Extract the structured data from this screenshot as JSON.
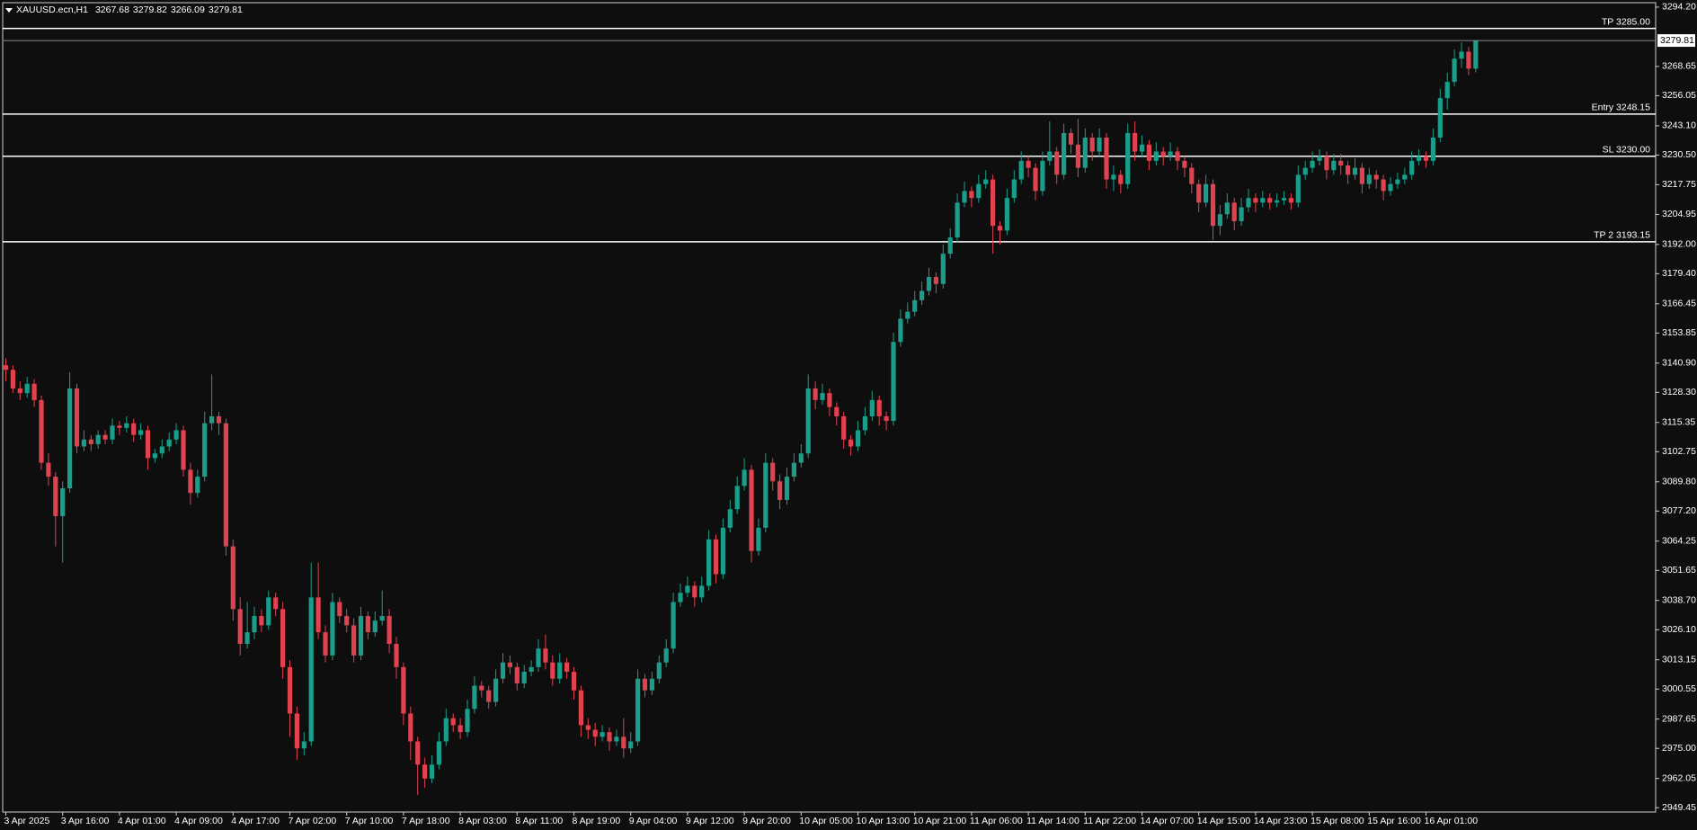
{
  "chart_data": {
    "type": "candlestick",
    "symbol": "XAUUSD.ecn,H1",
    "background": "#0e0e0e",
    "up_color": "#1a9e8a",
    "down_color": "#e0424f",
    "level_color": "#ffffff",
    "ylim": [
      2947.6,
      3296.1
    ],
    "yticks": [
      {
        "value": 3294.2,
        "label": "3294.20"
      },
      3268.65,
      3256.05,
      {
        "value": 3243.1,
        "label": "3243.10"
      },
      {
        "value": 3230.5,
        "label": "3230.50"
      },
      3217.75,
      3204.95,
      {
        "value": 3192,
        "label": "3192.00"
      },
      {
        "value": 3179.4,
        "label": "3179.40"
      },
      3166.45,
      3153.85,
      {
        "value": 3140.9,
        "label": "3140.90"
      },
      {
        "value": 3128.3,
        "label": "3128.30"
      },
      3115.35,
      3102.75,
      {
        "value": 3089.8,
        "label": "3089.80"
      },
      {
        "value": 3077.2,
        "label": "3077.20"
      },
      3064.25,
      3051.65,
      {
        "value": 3038.7,
        "label": "3038.70"
      },
      {
        "value": 3026.1,
        "label": "3026.10"
      },
      3013.15,
      3000.55,
      2987.65,
      {
        "value": 2975,
        "label": "2975.00"
      },
      2962.05,
      2949.45
    ],
    "levels": [
      {
        "label": "TP 3285.00",
        "value": 3285
      },
      {
        "label": "Entry 3248.15",
        "value": 3248.15
      },
      {
        "label": "SL 3230.00",
        "value": 3230
      },
      {
        "label": "TP 2 3193.15",
        "value": 3193.15
      }
    ],
    "categories": [
      "3 Apr 2025",
      null,
      null,
      null,
      null,
      null,
      null,
      null,
      "3 Apr 16:00",
      null,
      null,
      null,
      null,
      null,
      null,
      null,
      "4 Apr 01:00",
      null,
      null,
      null,
      null,
      null,
      null,
      null,
      "4 Apr 09:00",
      null,
      null,
      null,
      null,
      null,
      null,
      null,
      "4 Apr 17:00",
      null,
      null,
      null,
      null,
      null,
      null,
      null,
      "7 Apr 02:00",
      null,
      null,
      null,
      null,
      null,
      null,
      null,
      "7 Apr 10:00",
      null,
      null,
      null,
      null,
      null,
      null,
      null,
      "7 Apr 18:00",
      null,
      null,
      null,
      null,
      null,
      null,
      null,
      "8 Apr 03:00",
      null,
      null,
      null,
      null,
      null,
      null,
      null,
      "8 Apr 11:00",
      null,
      null,
      null,
      null,
      null,
      null,
      null,
      "8 Apr 19:00",
      null,
      null,
      null,
      null,
      null,
      null,
      null,
      "9 Apr 04:00",
      null,
      null,
      null,
      null,
      null,
      null,
      null,
      "9 Apr 12:00",
      null,
      null,
      null,
      null,
      null,
      null,
      null,
      "9 Apr 20:00",
      null,
      null,
      null,
      null,
      null,
      null,
      null,
      "10 Apr 05:00",
      null,
      null,
      null,
      null,
      null,
      null,
      null,
      "10 Apr 13:00",
      null,
      null,
      null,
      null,
      null,
      null,
      null,
      "10 Apr 21:00",
      null,
      null,
      null,
      null,
      null,
      null,
      null,
      "11 Apr 06:00",
      null,
      null,
      null,
      null,
      null,
      null,
      null,
      "11 Apr 14:00",
      null,
      null,
      null,
      null,
      null,
      null,
      null,
      "11 Apr 22:00",
      null,
      null,
      null,
      null,
      null,
      null,
      null,
      "14 Apr 07:00",
      null,
      null,
      null,
      null,
      null,
      null,
      null,
      "14 Apr 15:00",
      null,
      null,
      null,
      null,
      null,
      null,
      null,
      "14 Apr 23:00",
      null,
      null,
      null,
      null,
      null,
      null,
      null,
      "15 Apr 08:00",
      null,
      null,
      null,
      null,
      null,
      null,
      null,
      "15 Apr 16:00",
      null,
      null,
      null,
      null,
      null,
      null,
      null,
      "16 Apr 01:00",
      null,
      null,
      null,
      null,
      null,
      null,
      null
    ],
    "ohlc": [
      [
        3140,
        3143,
        3133,
        3138
      ],
      [
        3138,
        3140,
        3128,
        3130
      ],
      [
        3130,
        3133,
        3125,
        3128
      ],
      [
        3128,
        3135,
        3126,
        3132
      ],
      [
        3132,
        3134,
        3122,
        3125
      ],
      [
        3125,
        3127,
        3095,
        3098
      ],
      [
        3098,
        3102,
        3088,
        3092
      ],
      [
        3092,
        3094,
        3062,
        3075
      ],
      [
        3075,
        3090,
        3055,
        3087
      ],
      [
        3087,
        3137,
        3085,
        3130
      ],
      [
        3130,
        3132,
        3102,
        3105
      ],
      [
        3105,
        3112,
        3103,
        3108
      ],
      [
        3108,
        3110,
        3103,
        3106
      ],
      [
        3106,
        3112,
        3104,
        3110
      ],
      [
        3110,
        3112,
        3106,
        3108
      ],
      [
        3108,
        3117,
        3106,
        3114
      ],
      [
        3114,
        3116,
        3110,
        3113
      ],
      [
        3113,
        3118,
        3111,
        3115
      ],
      [
        3115,
        3117,
        3107,
        3110
      ],
      [
        3110,
        3115,
        3108,
        3112
      ],
      [
        3112,
        3114,
        3095,
        3100
      ],
      [
        3100,
        3104,
        3098,
        3102
      ],
      [
        3102,
        3108,
        3100,
        3105
      ],
      [
        3105,
        3111,
        3103,
        3108
      ],
      [
        3108,
        3115,
        3106,
        3112
      ],
      [
        3112,
        3114,
        3092,
        3095
      ],
      [
        3095,
        3098,
        3080,
        3085
      ],
      [
        3085,
        3095,
        3083,
        3092
      ],
      [
        3092,
        3120,
        3090,
        3115
      ],
      [
        3115,
        3136,
        3112,
        3118
      ],
      [
        3118,
        3120,
        3110,
        3115
      ],
      [
        3115,
        3117,
        3058,
        3062
      ],
      [
        3062,
        3065,
        3030,
        3035
      ],
      [
        3035,
        3040,
        3015,
        3020
      ],
      [
        3020,
        3038,
        3018,
        3025
      ],
      [
        3025,
        3036,
        3022,
        3032
      ],
      [
        3032,
        3035,
        3025,
        3028
      ],
      [
        3028,
        3043,
        3026,
        3040
      ],
      [
        3040,
        3042,
        3032,
        3035
      ],
      [
        3035,
        3038,
        3005,
        3010
      ],
      [
        3010,
        3013,
        2980,
        2990
      ],
      [
        2990,
        2993,
        2970,
        2975
      ],
      [
        2975,
        2982,
        2972,
        2978
      ],
      [
        2978,
        3055,
        2976,
        3040
      ],
      [
        3040,
        3055,
        3022,
        3025
      ],
      [
        3025,
        3028,
        3012,
        3015
      ],
      [
        3015,
        3042,
        3013,
        3038
      ],
      [
        3038,
        3040,
        3029,
        3032
      ],
      [
        3032,
        3035,
        3025,
        3028
      ],
      [
        3028,
        3031,
        3012,
        3015
      ],
      [
        3015,
        3036,
        3013,
        3032
      ],
      [
        3032,
        3034,
        3022,
        3025
      ],
      [
        3025,
        3034,
        3023,
        3030
      ],
      [
        3030,
        3043,
        3028,
        3032
      ],
      [
        3032,
        3035,
        3016,
        3020
      ],
      [
        3020,
        3023,
        3005,
        3010
      ],
      [
        3010,
        3012,
        2985,
        2990
      ],
      [
        2990,
        2993,
        2970,
        2978
      ],
      [
        2978,
        2980,
        2955,
        2968
      ],
      [
        2968,
        2971,
        2958,
        2962
      ],
      [
        2962,
        2972,
        2960,
        2968
      ],
      [
        2968,
        2982,
        2966,
        2978
      ],
      [
        2978,
        2992,
        2976,
        2988
      ],
      [
        2988,
        2990,
        2982,
        2985
      ],
      [
        2985,
        2988,
        2979,
        2982
      ],
      [
        2982,
        2996,
        2980,
        2992
      ],
      [
        2992,
        3006,
        2990,
        3002
      ],
      [
        3002,
        3004,
        2997,
        3000
      ],
      [
        3000,
        3002,
        2992,
        2995
      ],
      [
        2995,
        3009,
        2993,
        3005
      ],
      [
        3005,
        3016,
        3003,
        3012
      ],
      [
        3012,
        3015,
        3007,
        3010
      ],
      [
        3010,
        3012,
        3000,
        3003
      ],
      [
        3003,
        3011,
        3001,
        3008
      ],
      [
        3008,
        3013,
        3006,
        3010
      ],
      [
        3010,
        3022,
        3008,
        3018
      ],
      [
        3018,
        3024,
        3009,
        3012
      ],
      [
        3012,
        3015,
        3002,
        3005
      ],
      [
        3005,
        3016,
        3003,
        3012
      ],
      [
        3012,
        3014,
        3005,
        3008
      ],
      [
        3008,
        3010,
        2996,
        3000
      ],
      [
        3000,
        3002,
        2980,
        2985
      ],
      [
        2985,
        2988,
        2979,
        2983
      ],
      [
        2983,
        2986,
        2976,
        2980
      ],
      [
        2980,
        2985,
        2978,
        2982
      ],
      [
        2982,
        2984,
        2974,
        2978
      ],
      [
        2978,
        2983,
        2976,
        2980
      ],
      [
        2980,
        2988,
        2971,
        2975
      ],
      [
        2975,
        2982,
        2973,
        2978
      ],
      [
        2978,
        3009,
        2976,
        3005
      ],
      [
        3005,
        3007,
        2997,
        3000
      ],
      [
        3000,
        3008,
        2998,
        3005
      ],
      [
        3005,
        3015,
        3003,
        3012
      ],
      [
        3012,
        3022,
        3010,
        3018
      ],
      [
        3018,
        3042,
        3016,
        3038
      ],
      [
        3038,
        3046,
        3036,
        3042
      ],
      [
        3042,
        3049,
        3040,
        3045
      ],
      [
        3045,
        3047,
        3036,
        3040
      ],
      [
        3040,
        3049,
        3038,
        3045
      ],
      [
        3045,
        3069,
        3043,
        3065
      ],
      [
        3065,
        3067,
        3046,
        3050
      ],
      [
        3050,
        3074,
        3048,
        3070
      ],
      [
        3070,
        3082,
        3068,
        3078
      ],
      [
        3078,
        3092,
        3076,
        3088
      ],
      [
        3088,
        3100,
        3086,
        3095
      ],
      [
        3095,
        3097,
        3055,
        3060
      ],
      [
        3060,
        3074,
        3058,
        3070
      ],
      [
        3070,
        3102,
        3068,
        3098
      ],
      [
        3098,
        3100,
        3086,
        3090
      ],
      [
        3090,
        3093,
        3078,
        3082
      ],
      [
        3082,
        3096,
        3080,
        3092
      ],
      [
        3092,
        3102,
        3090,
        3098
      ],
      [
        3098,
        3106,
        3096,
        3102
      ],
      [
        3102,
        3136,
        3100,
        3130
      ],
      [
        3130,
        3133,
        3121,
        3125
      ],
      [
        3125,
        3132,
        3123,
        3128
      ],
      [
        3128,
        3130,
        3118,
        3122
      ],
      [
        3122,
        3124,
        3114,
        3118
      ],
      [
        3118,
        3120,
        3104,
        3108
      ],
      [
        3108,
        3110,
        3101,
        3105
      ],
      [
        3105,
        3116,
        3103,
        3112
      ],
      [
        3112,
        3122,
        3110,
        3118
      ],
      [
        3118,
        3129,
        3116,
        3125
      ],
      [
        3125,
        3127,
        3114,
        3118
      ],
      [
        3118,
        3120,
        3112,
        3116
      ],
      [
        3116,
        3154,
        3114,
        3150
      ],
      [
        3150,
        3164,
        3148,
        3160
      ],
      [
        3160,
        3167,
        3158,
        3163
      ],
      [
        3163,
        3172,
        3161,
        3168
      ],
      [
        3168,
        3176,
        3166,
        3172
      ],
      [
        3172,
        3182,
        3170,
        3178
      ],
      [
        3178,
        3180,
        3171,
        3175
      ],
      [
        3175,
        3192,
        3173,
        3188
      ],
      [
        3188,
        3199,
        3186,
        3195
      ],
      [
        3195,
        3214,
        3193,
        3210
      ],
      [
        3210,
        3219,
        3208,
        3215
      ],
      [
        3215,
        3217,
        3208,
        3212
      ],
      [
        3212,
        3222,
        3210,
        3218
      ],
      [
        3218,
        3224,
        3216,
        3220
      ],
      [
        3220,
        3222,
        3188,
        3200
      ],
      [
        3200,
        3202,
        3192,
        3198
      ],
      [
        3198,
        3216,
        3196,
        3212
      ],
      [
        3212,
        3224,
        3210,
        3220
      ],
      [
        3220,
        3232,
        3218,
        3228
      ],
      [
        3228,
        3230,
        3221,
        3225
      ],
      [
        3225,
        3227,
        3211,
        3215
      ],
      [
        3215,
        3232,
        3213,
        3228
      ],
      [
        3228,
        3245,
        3226,
        3232
      ],
      [
        3232,
        3234,
        3218,
        3222
      ],
      [
        3222,
        3244,
        3220,
        3240
      ],
      [
        3240,
        3242,
        3231,
        3235
      ],
      [
        3235,
        3246,
        3221,
        3225
      ],
      [
        3225,
        3242,
        3223,
        3238
      ],
      [
        3238,
        3240,
        3228,
        3232
      ],
      [
        3232,
        3242,
        3230,
        3238
      ],
      [
        3238,
        3240,
        3216,
        3220
      ],
      [
        3220,
        3226,
        3215,
        3222
      ],
      [
        3222,
        3224,
        3214,
        3218
      ],
      [
        3218,
        3244,
        3216,
        3240
      ],
      [
        3240,
        3245,
        3228,
        3232
      ],
      [
        3232,
        3239,
        3230,
        3235
      ],
      [
        3235,
        3237,
        3224,
        3228
      ],
      [
        3228,
        3236,
        3226,
        3232
      ],
      [
        3232,
        3234,
        3226,
        3230
      ],
      [
        3230,
        3236,
        3228,
        3232
      ],
      [
        3232,
        3234,
        3224,
        3228
      ],
      [
        3228,
        3230,
        3221,
        3225
      ],
      [
        3225,
        3227,
        3214,
        3218
      ],
      [
        3218,
        3220,
        3206,
        3210
      ],
      [
        3210,
        3222,
        3208,
        3218
      ],
      [
        3218,
        3220,
        3194,
        3200
      ],
      [
        3200,
        3209,
        3196,
        3205
      ],
      [
        3205,
        3214,
        3203,
        3210
      ],
      [
        3210,
        3212,
        3198,
        3202
      ],
      [
        3202,
        3212,
        3200,
        3208
      ],
      [
        3208,
        3216,
        3206,
        3212
      ],
      [
        3212,
        3214,
        3206,
        3210
      ],
      [
        3210,
        3215,
        3208,
        3212
      ],
      [
        3212,
        3214,
        3207,
        3210
      ],
      [
        3210,
        3214,
        3208,
        3211
      ],
      [
        3211,
        3215,
        3209,
        3212
      ],
      [
        3212,
        3214,
        3207,
        3210
      ],
      [
        3210,
        3226,
        3208,
        3222
      ],
      [
        3222,
        3228,
        3220,
        3225
      ],
      [
        3225,
        3232,
        3223,
        3228
      ],
      [
        3228,
        3233,
        3226,
        3230
      ],
      [
        3230,
        3232,
        3220,
        3224
      ],
      [
        3224,
        3231,
        3222,
        3228
      ],
      [
        3228,
        3231,
        3222,
        3226
      ],
      [
        3226,
        3228,
        3218,
        3222
      ],
      [
        3222,
        3229,
        3220,
        3225
      ],
      [
        3225,
        3227,
        3214,
        3218
      ],
      [
        3218,
        3225,
        3216,
        3222
      ],
      [
        3222,
        3224,
        3216,
        3220
      ],
      [
        3220,
        3222,
        3211,
        3215
      ],
      [
        3215,
        3221,
        3213,
        3218
      ],
      [
        3218,
        3223,
        3216,
        3220
      ],
      [
        3220,
        3225,
        3218,
        3222
      ],
      [
        3222,
        3232,
        3220,
        3228
      ],
      [
        3228,
        3233,
        3226,
        3230
      ],
      [
        3230,
        3232,
        3225,
        3228
      ],
      [
        3228,
        3242,
        3226,
        3238
      ],
      [
        3238,
        3259,
        3236,
        3255
      ],
      [
        3255,
        3266,
        3250,
        3262
      ],
      [
        3262,
        3276,
        3260,
        3272
      ],
      [
        3272,
        3279,
        3268,
        3275
      ],
      [
        3275,
        3277,
        3265,
        3267.68
      ],
      [
        3267.68,
        3279.82,
        3266.09,
        3279.81
      ]
    ]
  }
}
